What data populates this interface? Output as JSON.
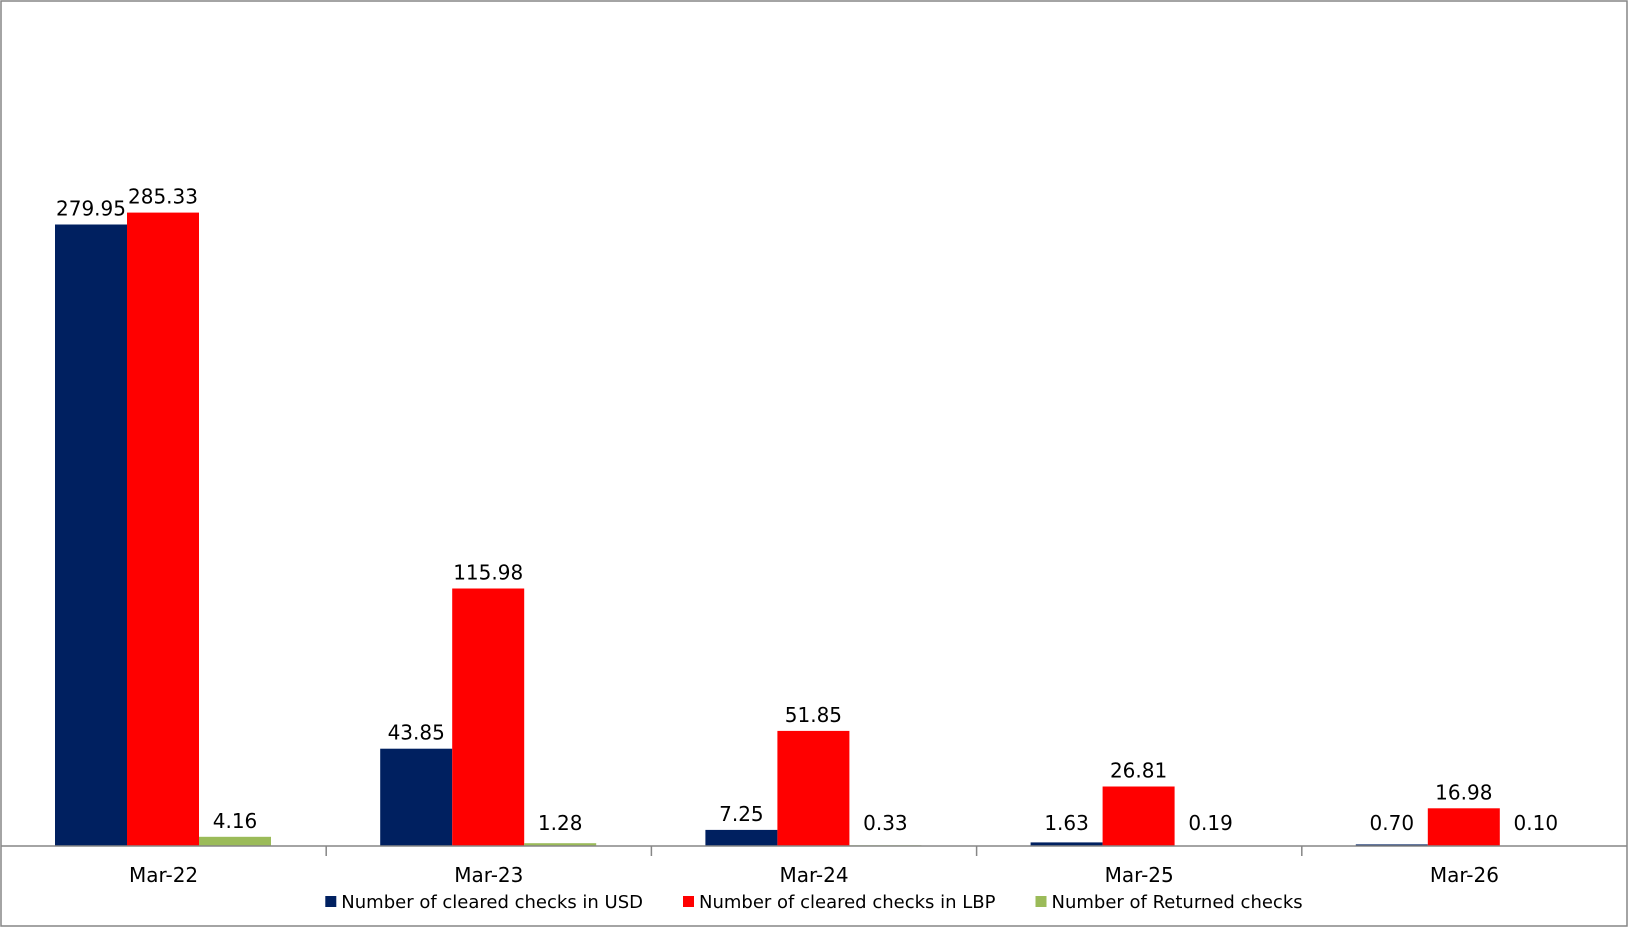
{
  "chart_data": {
    "type": "bar",
    "title": "",
    "xlabel": "",
    "ylabel": "",
    "categories": [
      "Mar-22",
      "Mar-23",
      "Mar-24",
      "Mar-25",
      "Mar-26"
    ],
    "series": [
      {
        "name": "Number of cleared checks in USD",
        "color": "#002060",
        "values": [
          279.95,
          43.85,
          7.25,
          1.63,
          0.7
        ],
        "labels": [
          "279.95",
          "43.85",
          "7.25",
          "1.63",
          "0.70"
        ]
      },
      {
        "name": "Number of cleared checks in LBP",
        "color": "#ff0000",
        "values": [
          285.33,
          115.98,
          51.85,
          26.81,
          16.98
        ],
        "labels": [
          "285.33",
          "115.98",
          "51.85",
          "26.81",
          "16.98"
        ]
      },
      {
        "name": "Number of Returned checks",
        "color": "#9bbb59",
        "values": [
          4.16,
          1.28,
          0.33,
          0.19,
          0.1
        ],
        "labels": [
          "4.16",
          "1.28",
          "0.33",
          "0.19",
          "0.10"
        ]
      }
    ],
    "ylim": [
      0,
      300
    ],
    "grid": false,
    "legend_position": "bottom"
  }
}
